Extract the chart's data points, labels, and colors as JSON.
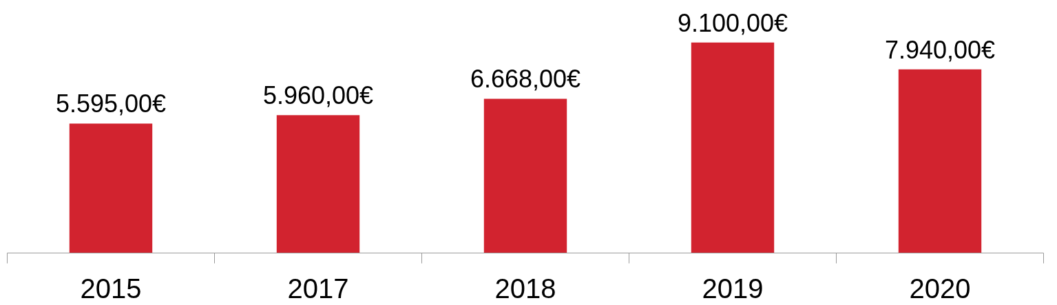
{
  "chart_data": {
    "type": "bar",
    "categories": [
      "2015",
      "2017",
      "2018",
      "2019",
      "2020"
    ],
    "values": [
      5595,
      5960,
      6668,
      9100,
      7940
    ],
    "color": "#d2232f",
    "value_labels": [
      "5.595,00€",
      "5.960,00€",
      "6.668,00€",
      "9.100,00€",
      "7.940,00€"
    ],
    "grid": false,
    "tick_labels": "x"
  }
}
